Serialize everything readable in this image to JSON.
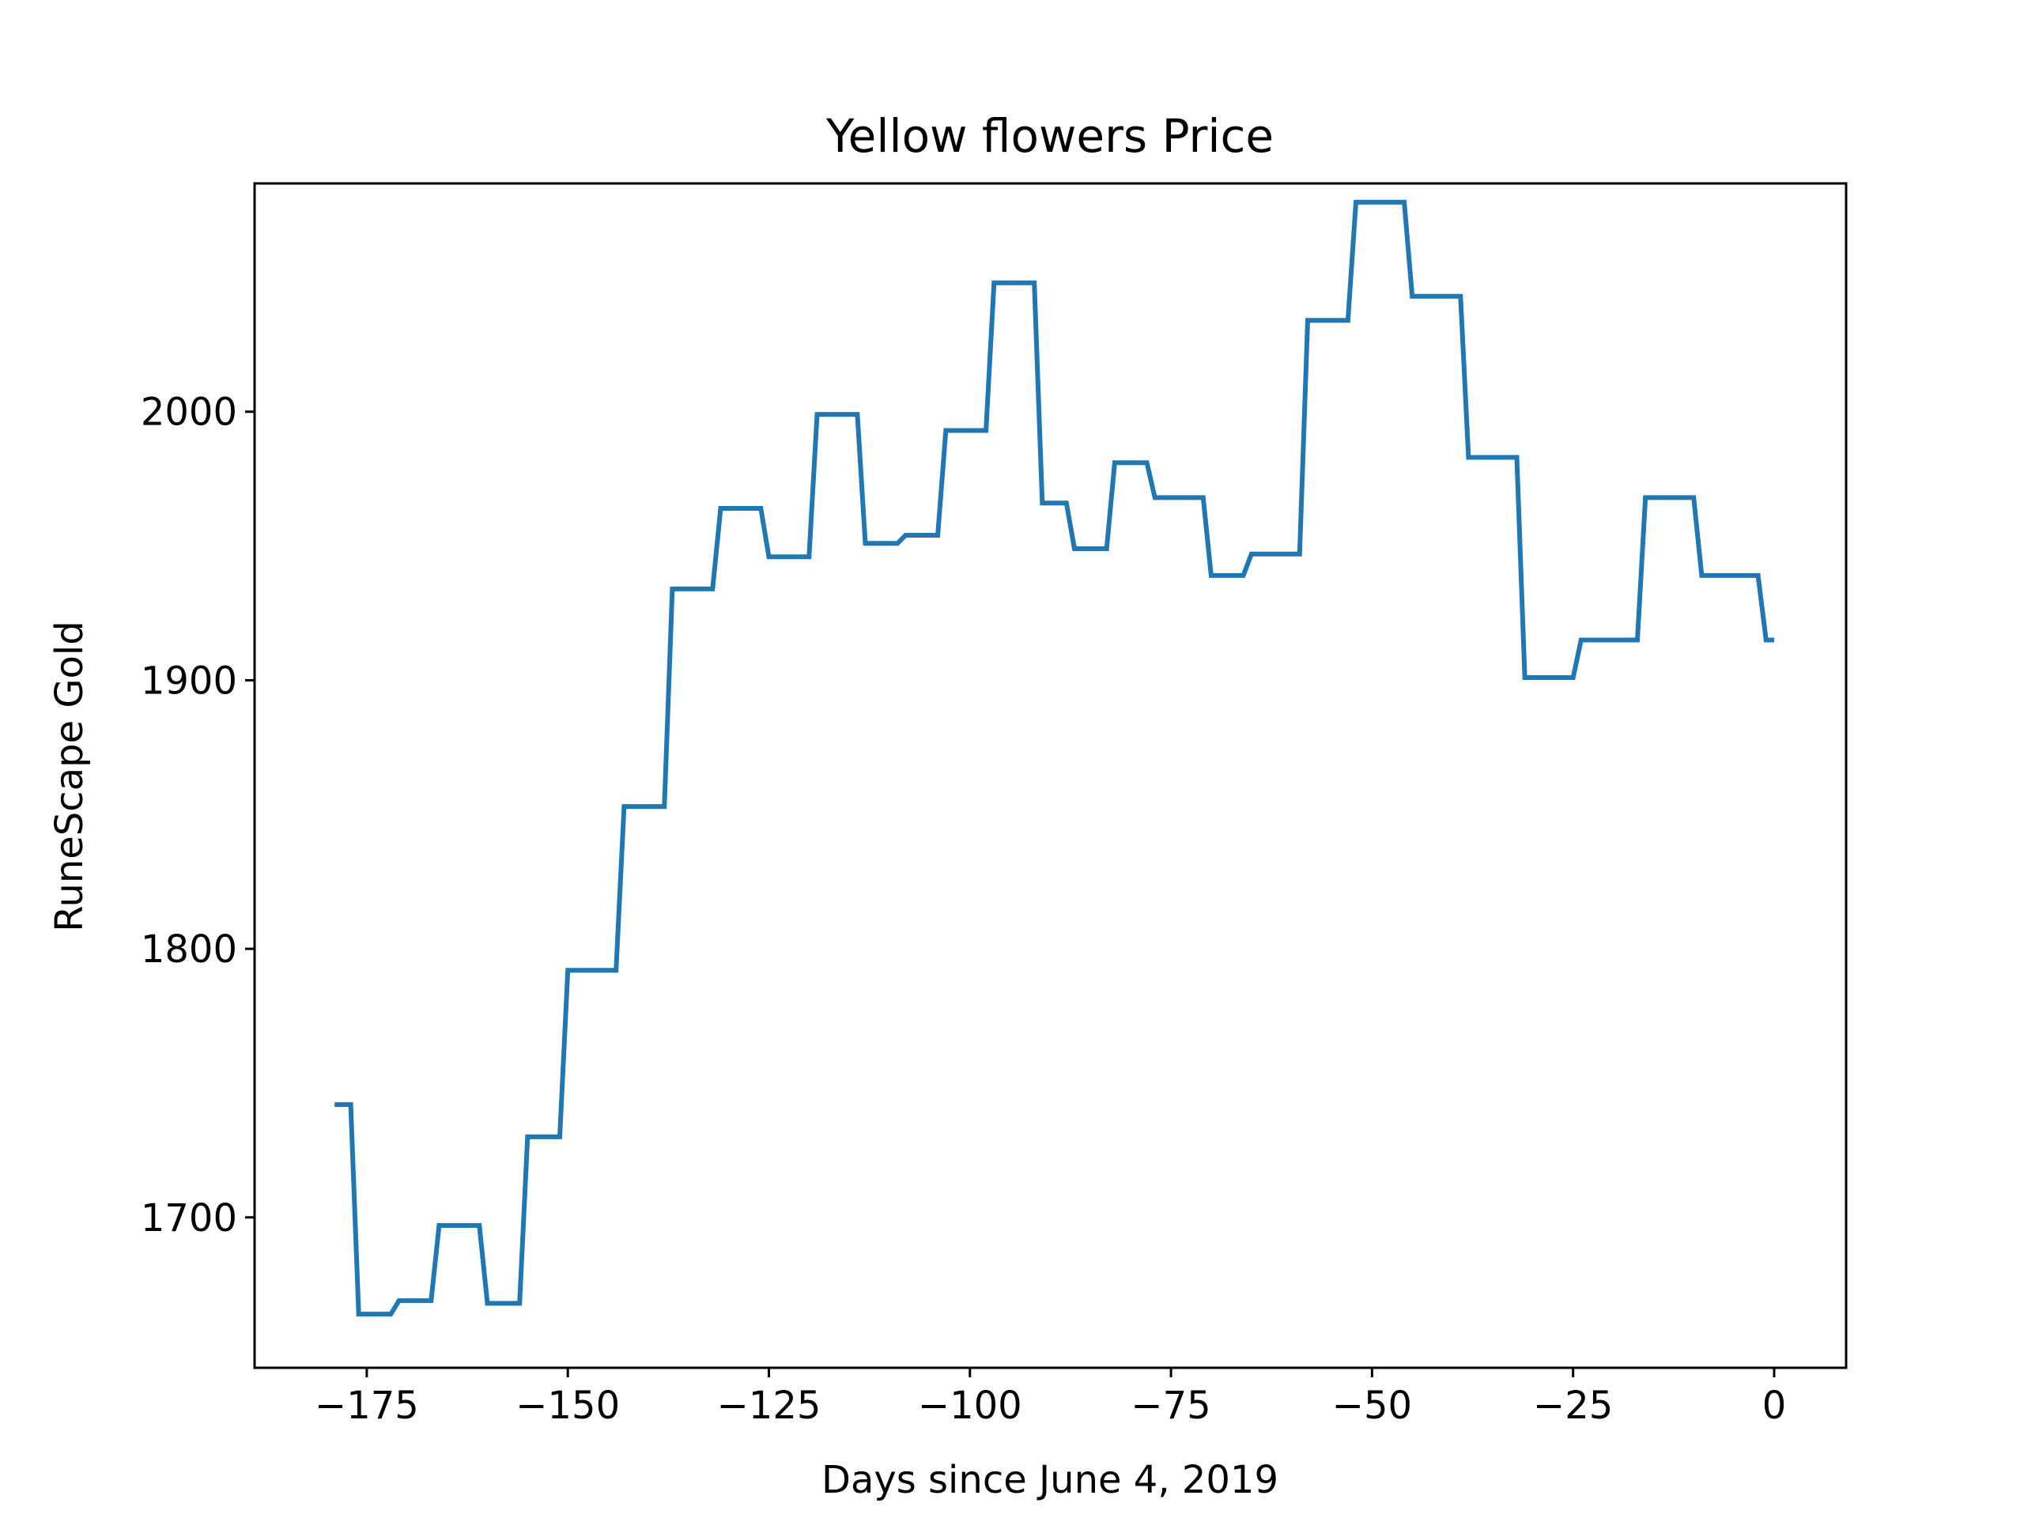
{
  "colors": {
    "line": "#1f77b4",
    "axes": "#000000",
    "background": "#ffffff"
  },
  "chart_data": {
    "type": "line",
    "title": "Yellow flowers Price",
    "xlabel": "Days since June 4, 2019",
    "ylabel": "RuneScape Gold",
    "grid": false,
    "xlim": [
      -188.95,
      8.95
    ],
    "ylim": [
      1644,
      2085
    ],
    "x_ticks": [
      -175,
      -150,
      -125,
      -100,
      -75,
      -50,
      -25,
      0
    ],
    "x_tick_labels": [
      "−175",
      "−150",
      "−125",
      "−100",
      "−75",
      "−50",
      "−25",
      "0"
    ],
    "y_ticks": [
      1700,
      1800,
      1900,
      2000
    ],
    "y_tick_labels": [
      "1700",
      "1800",
      "1900",
      "2000"
    ],
    "series": [
      {
        "values": [
          [
            -179,
            1742
          ],
          [
            -177,
            1742
          ],
          [
            -176,
            1664
          ],
          [
            -172,
            1664
          ],
          [
            -171,
            1669
          ],
          [
            -167,
            1669
          ],
          [
            -166,
            1697
          ],
          [
            -161,
            1697
          ],
          [
            -160,
            1668
          ],
          [
            -156,
            1668
          ],
          [
            -155,
            1730
          ],
          [
            -151,
            1730
          ],
          [
            -150,
            1792
          ],
          [
            -144,
            1792
          ],
          [
            -143,
            1853
          ],
          [
            -138,
            1853
          ],
          [
            -137,
            1934
          ],
          [
            -132,
            1934
          ],
          [
            -131,
            1964
          ],
          [
            -126,
            1964
          ],
          [
            -125,
            1946
          ],
          [
            -120,
            1946
          ],
          [
            -119,
            1999
          ],
          [
            -114,
            1999
          ],
          [
            -113,
            1951
          ],
          [
            -109,
            1951
          ],
          [
            -108,
            1954
          ],
          [
            -104,
            1954
          ],
          [
            -103,
            1993
          ],
          [
            -98,
            1993
          ],
          [
            -97,
            2048
          ],
          [
            -92,
            2048
          ],
          [
            -91,
            1966
          ],
          [
            -88,
            1966
          ],
          [
            -87,
            1949
          ],
          [
            -83,
            1949
          ],
          [
            -82,
            1981
          ],
          [
            -78,
            1981
          ],
          [
            -77,
            1968
          ],
          [
            -71,
            1968
          ],
          [
            -70,
            1939
          ],
          [
            -66,
            1939
          ],
          [
            -65,
            1947
          ],
          [
            -59,
            1947
          ],
          [
            -58,
            2034
          ],
          [
            -53,
            2034
          ],
          [
            -52,
            2078
          ],
          [
            -46,
            2078
          ],
          [
            -45,
            2043
          ],
          [
            -39,
            2043
          ],
          [
            -38,
            1983
          ],
          [
            -32,
            1983
          ],
          [
            -31,
            1901
          ],
          [
            -25,
            1901
          ],
          [
            -24,
            1915
          ],
          [
            -17,
            1915
          ],
          [
            -16,
            1968
          ],
          [
            -10,
            1968
          ],
          [
            -9,
            1939
          ],
          [
            -2,
            1939
          ],
          [
            -1,
            1915
          ],
          [
            0,
            1915
          ]
        ]
      }
    ]
  }
}
